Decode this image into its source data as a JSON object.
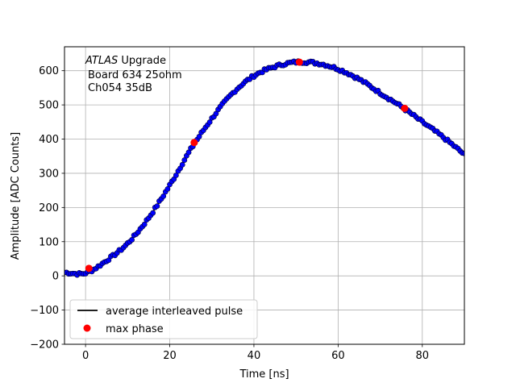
{
  "chart_data": {
    "type": "scatter",
    "title": "",
    "xlabel": "Time [ns]",
    "ylabel": "Amplitude [ADC Counts]",
    "xlim": [
      -5,
      90
    ],
    "ylim": [
      -200,
      670
    ],
    "x_ticks": [
      0,
      20,
      40,
      60,
      80
    ],
    "y_ticks": [
      -200,
      -100,
      0,
      100,
      200,
      300,
      400,
      500,
      600
    ],
    "x_tick_labels": [
      "0",
      "20",
      "40",
      "60",
      "80"
    ],
    "y_tick_labels": [
      "−200",
      "−100",
      "0",
      "100",
      "200",
      "300",
      "400",
      "500",
      "600"
    ],
    "grid": true,
    "annotation": {
      "line1_italic": "ATLAS",
      "line1_rest": " Upgrade",
      "line2": "Board 634 25ohm",
      "line3": "Ch054 35dB"
    },
    "legend": {
      "position": "lower-left",
      "entries": [
        {
          "label": "average interleaved pulse",
          "marker": "line",
          "color": "#000000"
        },
        {
          "label": "max phase",
          "marker": "circle",
          "color": "#ff0000"
        }
      ]
    },
    "series": [
      {
        "role": "samples",
        "color": "#0000ff",
        "edgecolor": "#000033",
        "x_start": -5,
        "x_end": 90,
        "x_step": 0.5,
        "model": "gaussian-like pulse with approximate samples",
        "points_xy": [
          [
            -5,
            10
          ],
          [
            0,
            8
          ],
          [
            5,
            45
          ],
          [
            10,
            95
          ],
          [
            15,
            170
          ],
          [
            20,
            265
          ],
          [
            25,
            370
          ],
          [
            30,
            460
          ],
          [
            35,
            535
          ],
          [
            40,
            585
          ],
          [
            45,
            612
          ],
          [
            50,
            625
          ],
          [
            55,
            622
          ],
          [
            60,
            605
          ],
          [
            65,
            575
          ],
          [
            70,
            535
          ],
          [
            75,
            495
          ],
          [
            80,
            450
          ],
          [
            85,
            405
          ],
          [
            90,
            355
          ]
        ]
      },
      {
        "role": "average interleaved pulse",
        "color": "#000000",
        "points_xy": [
          [
            -5,
            10
          ],
          [
            0,
            8
          ],
          [
            5,
            45
          ],
          [
            10,
            95
          ],
          [
            15,
            170
          ],
          [
            20,
            265
          ],
          [
            25,
            370
          ],
          [
            30,
            460
          ],
          [
            35,
            535
          ],
          [
            40,
            585
          ],
          [
            45,
            612
          ],
          [
            50,
            625
          ],
          [
            55,
            622
          ],
          [
            60,
            605
          ],
          [
            65,
            575
          ],
          [
            70,
            535
          ],
          [
            75,
            495
          ],
          [
            80,
            450
          ],
          [
            85,
            405
          ],
          [
            90,
            355
          ]
        ]
      },
      {
        "role": "max phase",
        "color": "#ff0000",
        "points_xy": [
          [
            0.8,
            22
          ],
          [
            25.8,
            390
          ],
          [
            50.8,
            625
          ],
          [
            75.8,
            490
          ]
        ]
      }
    ]
  }
}
